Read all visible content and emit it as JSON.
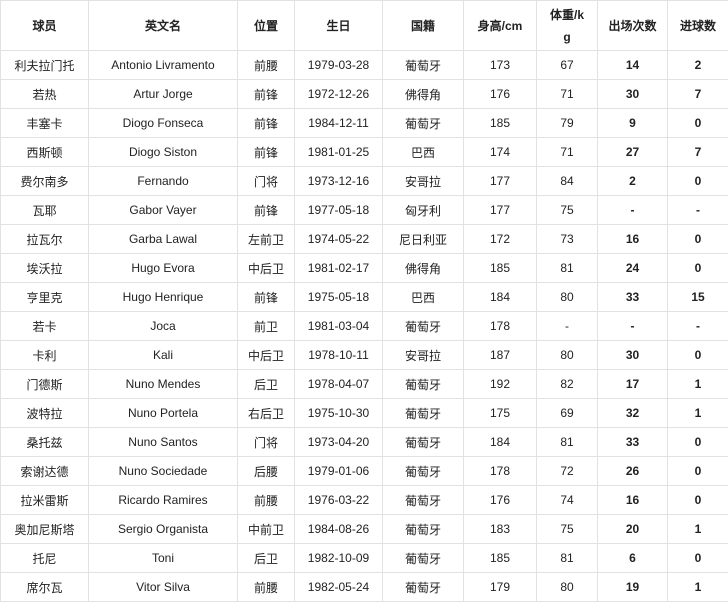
{
  "table": {
    "header": [
      "球员",
      "英文名",
      "位置",
      "生日",
      "国籍",
      "身高/cm",
      "体重/kg",
      "出场次数",
      "进球数"
    ],
    "rows": [
      [
        "利夫拉门托",
        "Antonio Livramento",
        "前腰",
        "1979-03-28",
        "葡萄牙",
        173,
        67,
        14,
        2
      ],
      [
        "若热",
        "Artur Jorge",
        "前锋",
        "1972-12-26",
        "佛得角",
        176,
        71,
        30,
        7
      ],
      [
        "丰塞卡",
        "Diogo Fonseca",
        "前锋",
        "1984-12-11",
        "葡萄牙",
        185,
        79,
        9,
        0
      ],
      [
        "西斯顿",
        "Diogo Siston",
        "前锋",
        "1981-01-25",
        "巴西",
        174,
        71,
        27,
        7
      ],
      [
        "费尔南多",
        "Fernando",
        "门将",
        "1973-12-16",
        "安哥拉",
        177,
        84,
        2,
        0
      ],
      [
        "瓦耶",
        "Gabor Vayer",
        "前锋",
        "1977-05-18",
        "匈牙利",
        177,
        75,
        "-",
        "-"
      ],
      [
        "拉瓦尔",
        "Garba Lawal",
        "左前卫",
        "1974-05-22",
        "尼日利亚",
        172,
        73,
        16,
        0
      ],
      [
        "埃沃拉",
        "Hugo Evora",
        "中后卫",
        "1981-02-17",
        "佛得角",
        185,
        81,
        24,
        0
      ],
      [
        "亨里克",
        "Hugo Henrique",
        "前锋",
        "1975-05-18",
        "巴西",
        184,
        80,
        33,
        15
      ],
      [
        "若卡",
        "Joca",
        "前卫",
        "1981-03-04",
        "葡萄牙",
        178,
        "-",
        "-",
        "-"
      ],
      [
        "卡利",
        "Kali",
        "中后卫",
        "1978-10-11",
        "安哥拉",
        187,
        80,
        30,
        0
      ],
      [
        "门德斯",
        "Nuno Mendes",
        "后卫",
        "1978-04-07",
        "葡萄牙",
        192,
        82,
        17,
        1
      ],
      [
        "波特拉",
        "Nuno Portela",
        "右后卫",
        "1975-10-30",
        "葡萄牙",
        175,
        69,
        32,
        1
      ],
      [
        "桑托兹",
        "Nuno Santos",
        "门将",
        "1973-04-20",
        "葡萄牙",
        184,
        81,
        33,
        0
      ],
      [
        "索谢达德",
        "Nuno Sociedade",
        "后腰",
        "1979-01-06",
        "葡萄牙",
        178,
        72,
        26,
        0
      ],
      [
        "拉米雷斯",
        "Ricardo Ramires",
        "前腰",
        "1976-03-22",
        "葡萄牙",
        176,
        74,
        16,
        0
      ],
      [
        "奥加尼斯塔",
        "Sergio Organista",
        "中前卫",
        "1984-08-26",
        "葡萄牙",
        183,
        75,
        20,
        1
      ],
      [
        "托尼",
        "Toni",
        "后卫",
        "1982-10-09",
        "葡萄牙",
        185,
        81,
        6,
        0
      ],
      [
        "席尔瓦",
        "Vitor Silva",
        "前腰",
        "1982-05-24",
        "葡萄牙",
        179,
        80,
        19,
        1
      ]
    ]
  }
}
